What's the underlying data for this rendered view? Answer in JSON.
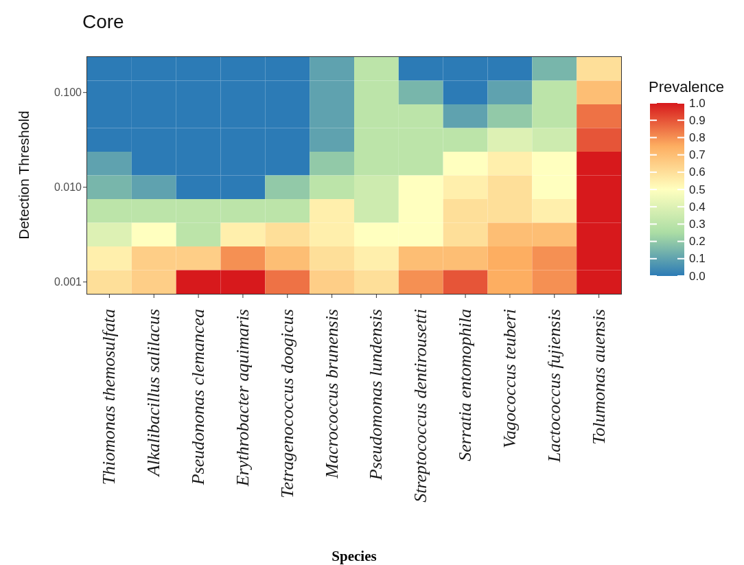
{
  "chart_data": {
    "type": "heatmap",
    "title": "Core",
    "xlabel": "Species",
    "ylabel": "Detection Threshold",
    "legend_title": "Prevalence",
    "categories": [
      "Thiomonas themosulfata",
      "Alkalibacillus salilacus",
      "Pseudononas clemancea",
      "Erythrobacter aquimaris",
      "Tetragenococcus doogicus",
      "Macrococcus brunensis",
      "Pseudomonas lundensis",
      "Streptococcus dentirousetti",
      "Serratia entomophila",
      "Vagococcus teuberi",
      "Lactococcus fujiensis",
      "Tolumonas auensis"
    ],
    "log": "y",
    "ylim": [
      0.00075,
      0.237
    ],
    "yticks": [
      {
        "value": 0.1,
        "label": "0.100"
      },
      {
        "value": 0.01,
        "label": "0.010"
      },
      {
        "value": 0.001,
        "label": "0.001"
      }
    ],
    "cells": [
      [
        0,
        0,
        0,
        0,
        0,
        0.1,
        0.3,
        0,
        0,
        0,
        0.15,
        0.6
      ],
      [
        0,
        0,
        0,
        0,
        0,
        0.1,
        0.3,
        0.15,
        0,
        0.1,
        0.3,
        0.7
      ],
      [
        0,
        0,
        0,
        0,
        0,
        0.1,
        0.3,
        0.3,
        0.1,
        0.2,
        0.3,
        0.85
      ],
      [
        0,
        0,
        0,
        0,
        0,
        0.1,
        0.3,
        0.3,
        0.3,
        0.4,
        0.35,
        0.9
      ],
      [
        0.1,
        0,
        0,
        0,
        0,
        0.2,
        0.3,
        0.3,
        0.5,
        0.55,
        0.5,
        1.0
      ],
      [
        0.15,
        0.1,
        0,
        0,
        0.2,
        0.3,
        0.35,
        0.5,
        0.55,
        0.6,
        0.5,
        1.0
      ],
      [
        0.3,
        0.3,
        0.3,
        0.3,
        0.3,
        0.55,
        0.35,
        0.5,
        0.6,
        0.6,
        0.55,
        1.0
      ],
      [
        0.4,
        0.5,
        0.3,
        0.55,
        0.6,
        0.55,
        0.5,
        0.5,
        0.6,
        0.7,
        0.7,
        1.0
      ],
      [
        0.55,
        0.65,
        0.65,
        0.8,
        0.7,
        0.6,
        0.55,
        0.7,
        0.7,
        0.75,
        0.8,
        1.0
      ],
      [
        0.6,
        0.65,
        1.0,
        1.0,
        0.85,
        0.65,
        0.6,
        0.8,
        0.9,
        0.75,
        0.8,
        1.0
      ]
    ],
    "clim": [
      0,
      1
    ],
    "cticks": [
      {
        "value": 0,
        "label": "0.0"
      },
      {
        "value": 0.1,
        "label": "0.1"
      },
      {
        "value": 0.2,
        "label": "0.2"
      },
      {
        "value": 0.3,
        "label": "0.3"
      },
      {
        "value": 0.4,
        "label": "0.4"
      },
      {
        "value": 0.5,
        "label": "0.5"
      },
      {
        "value": 0.6,
        "label": "0.6"
      },
      {
        "value": 0.7,
        "label": "0.7"
      },
      {
        "value": 0.8,
        "label": "0.8"
      },
      {
        "value": 0.9,
        "label": "0.9"
      },
      {
        "value": 1,
        "label": "1.0"
      }
    ]
  }
}
